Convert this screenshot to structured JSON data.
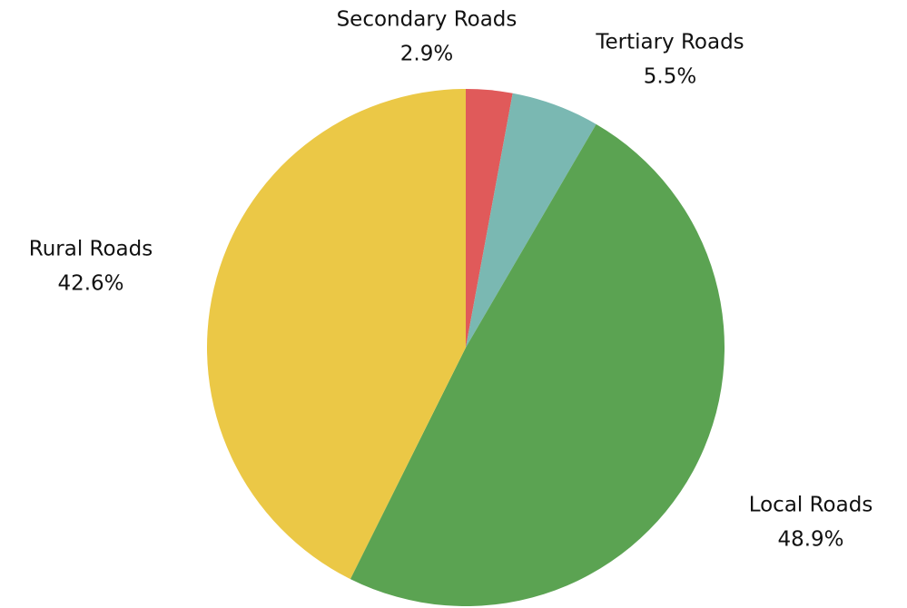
{
  "chart_data": {
    "type": "pie",
    "categories": [
      "Secondary Roads",
      "Tertiary Roads",
      "Local Roads",
      "Rural Roads"
    ],
    "values": [
      2.9,
      5.5,
      48.9,
      42.6
    ],
    "value_labels": [
      "2.9%",
      "5.5%",
      "48.9%",
      "42.6%"
    ],
    "colors": [
      "#e05a5a",
      "#7ab8b2",
      "#5ba352",
      "#ebc846"
    ]
  }
}
